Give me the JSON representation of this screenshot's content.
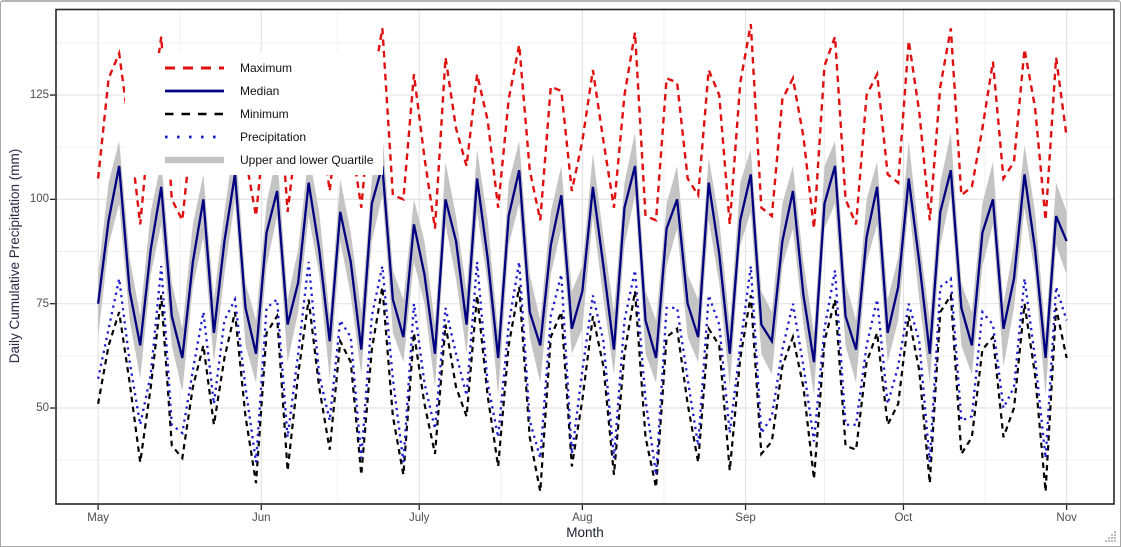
{
  "window": {
    "kind": "plot-window",
    "border_color": "#a8a8a8",
    "background": "#ffffff"
  },
  "icons": {
    "resize_grip_icon": "diagonal-dot-triangle"
  },
  "colors": {
    "maximum_red": "#e01010",
    "median_navy": "#000080",
    "minimum_black": "#000000",
    "precipitation_blue": "#1c1ccd",
    "quartile_gray": "#c4c4c4",
    "grid_major": "#e4e4e4",
    "grid_minor": "#f0f0f0",
    "panel_border": "#262626",
    "tick_label": "#4d4d4d",
    "axis_title": "#2a2a44"
  },
  "chart_data": {
    "type": "line",
    "title": "",
    "xlabel": "Month",
    "ylabel": "Daily Cumulative Precipitation (mm)",
    "x_unit": "days since May 1",
    "x_domain": [
      -8,
      193
    ],
    "y_domain": [
      27,
      145.5
    ],
    "grid": true,
    "legend_position": "inside top-left",
    "x_ticks": [
      {
        "day": 0,
        "label": "May"
      },
      {
        "day": 31,
        "label": "Jun"
      },
      {
        "day": 61,
        "label": "July"
      },
      {
        "day": 92,
        "label": "Aug"
      },
      {
        "day": 123,
        "label": "Sep"
      },
      {
        "day": 153,
        "label": "Oct"
      },
      {
        "day": 184,
        "label": "Nov"
      }
    ],
    "x_minor_days": [
      15.5,
      45.5,
      76.5,
      107.5,
      138,
      168.5
    ],
    "y_ticks": [
      50,
      75,
      100,
      125
    ],
    "y_minor": [
      37.5,
      62.5,
      87.5,
      112.5,
      137.5
    ],
    "x": [
      0,
      2,
      4,
      6,
      8,
      10,
      12,
      14,
      16,
      18,
      20,
      22,
      24,
      26,
      28,
      30,
      32,
      34,
      36,
      38,
      40,
      42,
      44,
      46,
      48,
      50,
      52,
      54,
      56,
      58,
      60,
      62,
      64,
      66,
      68,
      70,
      72,
      74,
      76,
      78,
      80,
      82,
      84,
      86,
      88,
      90,
      92,
      94,
      96,
      98,
      100,
      102,
      104,
      106,
      108,
      110,
      112,
      114,
      116,
      118,
      120,
      122,
      124,
      126,
      128,
      130,
      132,
      134,
      136,
      138,
      140,
      142,
      144,
      146,
      148,
      150,
      152,
      154,
      156,
      158,
      160,
      162,
      164,
      166,
      168,
      170,
      172,
      174,
      176,
      178,
      180,
      182,
      184
    ],
    "series": [
      {
        "name": "Maximum",
        "color": "#e01010",
        "style": "dashed",
        "width": 2.4,
        "dash": "6.5 5",
        "key_dash": "10 8",
        "key_width": 3,
        "values": [
          105,
          129,
          135,
          116,
          94,
          121,
          139,
          100,
          95,
          119,
          127,
          106,
          115,
          133,
          110,
          96,
          122,
          134,
          97,
          118,
          129,
          121,
          102,
          125,
          115,
          98,
          126,
          141,
          101,
          100,
          130,
          110,
          93,
          134,
          117,
          108,
          130,
          119,
          98,
          124,
          137,
          107,
          95,
          127,
          126,
          102,
          114,
          131,
          114,
          98,
          125,
          140,
          96,
          95,
          129,
          128,
          105,
          101,
          131,
          125,
          94,
          128,
          142,
          98,
          96,
          124,
          129,
          115,
          93,
          132,
          139,
          100,
          94,
          125,
          130,
          106,
          104,
          138,
          121,
          95,
          127,
          141,
          101,
          103,
          117,
          133,
          105,
          109,
          136,
          122,
          95,
          134,
          115
        ]
      },
      {
        "name": "Median",
        "color": "#000080",
        "style": "solid",
        "width": 2.3,
        "dash": "",
        "key_dash": "",
        "key_width": 2.8,
        "values": [
          75,
          95,
          108,
          78,
          65,
          88,
          103,
          72,
          62,
          85,
          100,
          68,
          90,
          106,
          74,
          63,
          92,
          102,
          70,
          80,
          104,
          88,
          66,
          97,
          85,
          64,
          99,
          108,
          76,
          67,
          94,
          82,
          63,
          100,
          90,
          70,
          105,
          86,
          62,
          96,
          107,
          73,
          65,
          89,
          101,
          69,
          78,
          103,
          84,
          64,
          98,
          108,
          71,
          62,
          93,
          100,
          75,
          67,
          104,
          87,
          63,
          95,
          106,
          70,
          66,
          90,
          102,
          77,
          61,
          99,
          108,
          72,
          64,
          91,
          103,
          68,
          79,
          105,
          85,
          63,
          97,
          107,
          74,
          65,
          92,
          100,
          69,
          81,
          106,
          88,
          62,
          96,
          90
        ]
      },
      {
        "name": "Minimum",
        "color": "#000000",
        "style": "dashed",
        "width": 2.2,
        "dash": "5.5 4.5",
        "key_dash": "8.5 8",
        "key_width": 2.6,
        "values": [
          51,
          65,
          73,
          56,
          37,
          55,
          77,
          41,
          38,
          55,
          65,
          46,
          62,
          73,
          48,
          32,
          68,
          72,
          35,
          58,
          76,
          55,
          40,
          66,
          61,
          34,
          64,
          79,
          48,
          34,
          68,
          51,
          39,
          70,
          55,
          48,
          77,
          53,
          36,
          65,
          79,
          43,
          30,
          67,
          73,
          36,
          52,
          72,
          60,
          34,
          63,
          78,
          43,
          31,
          67,
          69,
          51,
          37,
          69,
          65,
          35,
          62,
          77,
          39,
          42,
          60,
          67,
          55,
          33,
          66,
          76,
          41,
          40,
          61,
          68,
          46,
          51,
          72,
          59,
          32,
          73,
          77,
          39,
          43,
          64,
          67,
          43,
          50,
          75,
          58,
          30,
          74,
          62
        ]
      },
      {
        "name": "Precipitation",
        "color": "#1c1ccd",
        "style": "dotted",
        "width": 2.3,
        "dash": "2.3 4.3",
        "key_dash": "2.6 9.4",
        "key_width": 2.8,
        "values": [
          57,
          69,
          81,
          61,
          46,
          58,
          84,
          46,
          44,
          59,
          73,
          51,
          71,
          76,
          55,
          37,
          74,
          76,
          43,
          63,
          85,
          58,
          47,
          71,
          67,
          38,
          72,
          84,
          57,
          37,
          75,
          56,
          45,
          74,
          63,
          53,
          85,
          56,
          43,
          70,
          85,
          47,
          38,
          72,
          82,
          39,
          59,
          77,
          66,
          38,
          71,
          83,
          52,
          34,
          74,
          74,
          57,
          41,
          77,
          70,
          44,
          65,
          84,
          44,
          48,
          64,
          75,
          60,
          42,
          69,
          83,
          46,
          46,
          65,
          76,
          51,
          60,
          75,
          66,
          37,
          79,
          81,
          47,
          48,
          73,
          70,
          50,
          55,
          81,
          62,
          38,
          79,
          71
        ]
      },
      {
        "name": "Upper and lower Quartile",
        "color": "#c4c4c4",
        "style": "ribbon",
        "width": 0,
        "dash": "",
        "key_dash": "",
        "key_width": 6.5,
        "upper": [
          82,
          104,
          114,
          86,
          72,
          97,
          109,
          80,
          69,
          94,
          106,
          76,
          97,
          115,
          80,
          71,
          99,
          111,
          76,
          88,
          111,
          97,
          72,
          105,
          92,
          73,
          105,
          116,
          83,
          76,
          100,
          90,
          70,
          109,
          96,
          78,
          112,
          95,
          68,
          104,
          114,
          82,
          71,
          97,
          108,
          78,
          84,
          111,
          91,
          73,
          104,
          116,
          78,
          71,
          99,
          108,
          82,
          76,
          110,
          95,
          70,
          104,
          112,
          78,
          73,
          99,
          108,
          85,
          68,
          108,
          114,
          80,
          71,
          100,
          109,
          76,
          86,
          114,
          91,
          71,
          104,
          116,
          80,
          73,
          99,
          109,
          75,
          89,
          113,
          97,
          68,
          104,
          97
        ],
        "lower": [
          67,
          89,
          99,
          71,
          57,
          82,
          94,
          65,
          54,
          79,
          91,
          61,
          82,
          100,
          65,
          56,
          84,
          96,
          61,
          73,
          96,
          82,
          57,
          90,
          77,
          58,
          90,
          101,
          68,
          61,
          85,
          75,
          55,
          94,
          81,
          63,
          97,
          80,
          53,
          89,
          99,
          67,
          56,
          82,
          93,
          63,
          69,
          96,
          76,
          58,
          89,
          101,
          63,
          56,
          84,
          93,
          67,
          61,
          95,
          80,
          55,
          89,
          97,
          63,
          58,
          84,
          93,
          70,
          53,
          93,
          99,
          65,
          56,
          85,
          94,
          61,
          71,
          99,
          76,
          56,
          89,
          101,
          65,
          58,
          84,
          94,
          60,
          74,
          98,
          82,
          53,
          89,
          82
        ]
      }
    ]
  }
}
